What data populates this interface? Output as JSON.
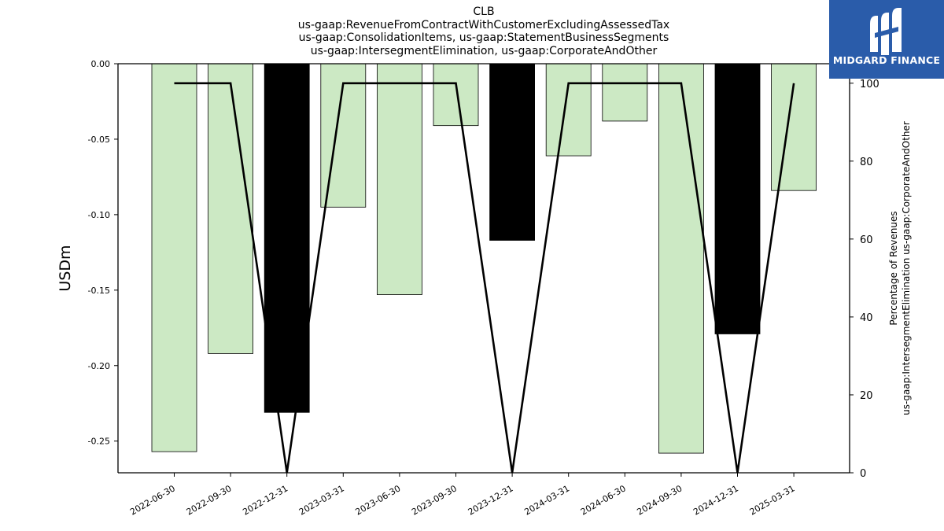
{
  "header": {
    "title_lines": [
      "CLB",
      "us-gaap:RevenueFromContractWithCustomerExcludingAssessedTax",
      "us-gaap:ConsolidationItems, us-gaap:StatementBusinessSegments",
      "us-gaap:IntersegmentElimination, us-gaap:CorporateAndOther"
    ]
  },
  "logo": {
    "text": "MIDGARD FINANCE",
    "background": "#2a5caa"
  },
  "chart_data": {
    "type": "bar",
    "categories": [
      "2022-06-30",
      "2022-09-30",
      "2022-12-31",
      "2023-03-31",
      "2023-06-30",
      "2023-09-30",
      "2023-12-31",
      "2024-03-31",
      "2024-06-30",
      "2024-09-30",
      "2024-12-31",
      "2025-03-31"
    ],
    "series": [
      {
        "axis": "left",
        "type": "bar",
        "values": [
          -0.257,
          -0.192,
          -0.231,
          -0.095,
          -0.153,
          -0.041,
          -0.117,
          -0.061,
          -0.038,
          -0.258,
          -0.179,
          -0.084
        ],
        "colors": [
          "#cce9c4",
          "#cce9c4",
          "#000000",
          "#cce9c4",
          "#cce9c4",
          "#cce9c4",
          "#000000",
          "#cce9c4",
          "#cce9c4",
          "#cce9c4",
          "#000000",
          "#cce9c4"
        ]
      },
      {
        "axis": "right",
        "type": "line",
        "values": [
          100,
          100,
          0,
          100,
          100,
          100,
          0,
          100,
          100,
          100,
          0,
          100
        ],
        "color": "#000000"
      }
    ],
    "ylabel": "USDm",
    "y2label": [
      "Percentage of Revenues",
      "us-gaap:IntersegmentElimination us-gaap:CorporateAndOther"
    ],
    "ylim": [
      -0.271,
      0.0
    ],
    "y2lim": [
      0,
      105
    ],
    "yticks": [
      "0.00",
      "-0.05",
      "-0.10",
      "-0.15",
      "-0.20",
      "-0.25"
    ],
    "y2ticks": [
      "0",
      "20",
      "40",
      "60",
      "80",
      "100"
    ],
    "grid": false,
    "colors": {
      "positive_bar": "#cce9c4",
      "negative_quarter_bar": "#000000",
      "line": "#000000"
    }
  }
}
